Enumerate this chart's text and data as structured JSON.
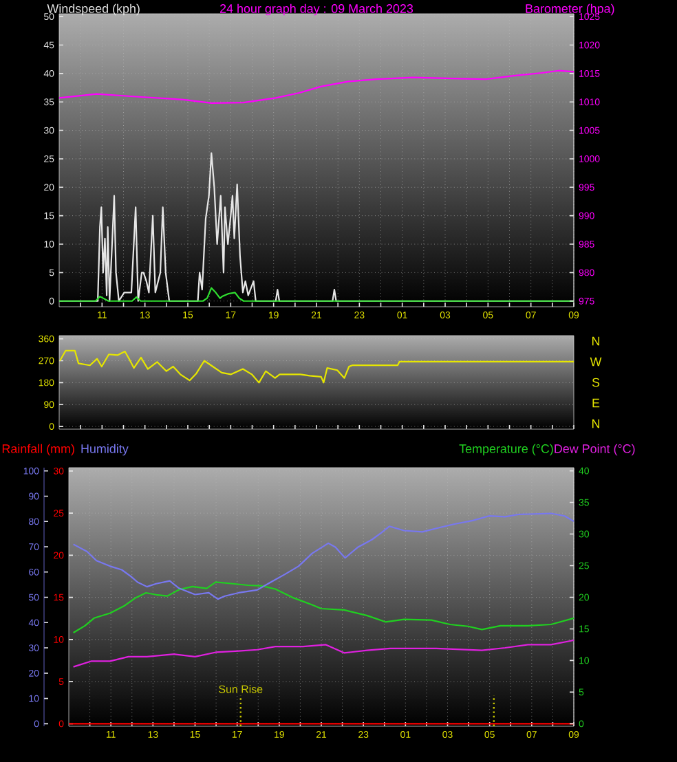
{
  "chart_data": [
    {
      "type": "line",
      "title": "24 hour graph day : 09 March 2023",
      "xlim": [
        "2023-03-08T09:00",
        "2023-03-09T09:00"
      ],
      "xticks": [
        {
          "value": "2023-03-08T10:00",
          "label": null
        },
        {
          "value": "2023-03-08T11:00",
          "label": "11"
        },
        {
          "value": "2023-03-08T12:00",
          "label": null
        },
        {
          "value": "2023-03-08T13:00",
          "label": "13"
        },
        {
          "value": "2023-03-08T14:00",
          "label": null
        },
        {
          "value": "2023-03-08T15:00",
          "label": "15"
        },
        {
          "value": "2023-03-08T16:00",
          "label": null
        },
        {
          "value": "2023-03-08T17:00",
          "label": "17"
        },
        {
          "value": "2023-03-08T18:00",
          "label": null
        },
        {
          "value": "2023-03-08T19:00",
          "label": "19"
        },
        {
          "value": "2023-03-08T20:00",
          "label": null
        },
        {
          "value": "2023-03-08T21:00",
          "label": "21"
        },
        {
          "value": "2023-03-08T22:00",
          "label": null
        },
        {
          "value": "2023-03-08T23:00",
          "label": "23"
        },
        {
          "value": "2023-03-09T00:00",
          "label": null
        },
        {
          "value": "2023-03-09T01:00",
          "label": "01"
        },
        {
          "value": "2023-03-09T02:00",
          "label": null
        },
        {
          "value": "2023-03-09T03:00",
          "label": "03"
        },
        {
          "value": "2023-03-09T04:00",
          "label": null
        },
        {
          "value": "2023-03-09T05:00",
          "label": "05"
        },
        {
          "value": "2023-03-09T06:00",
          "label": null
        },
        {
          "value": "2023-03-09T07:00",
          "label": "07"
        },
        {
          "value": "2023-03-09T08:00",
          "label": null
        },
        {
          "value": "2023-03-09T09:00",
          "label": "09"
        }
      ],
      "ylim": [
        -1,
        50.5
      ],
      "yticks": [
        0,
        5,
        10,
        15,
        20,
        25,
        30,
        35,
        40,
        45,
        50
      ],
      "y2lim": [
        974,
        1025.5
      ],
      "y2ticks": [
        975,
        980,
        985,
        990,
        995,
        1000,
        1005,
        1010,
        1015,
        1020,
        1025
      ],
      "grid": true,
      "series": [
        {
          "name": "Windspeed (kph)",
          "color": "#e6e6e6",
          "x": [
            "2023-03-08T09:00",
            "2023-03-08T10:48",
            "2023-03-08T10:54",
            "2023-03-08T10:58",
            "2023-03-08T11:03",
            "2023-03-08T11:08",
            "2023-03-08T11:13",
            "2023-03-08T11:16",
            "2023-03-08T11:21",
            "2023-03-08T11:34",
            "2023-03-08T11:39",
            "2023-03-08T11:47",
            "2023-03-08T12:02",
            "2023-03-08T12:22",
            "2023-03-08T12:34",
            "2023-03-08T12:41",
            "2023-03-08T12:51",
            "2023-03-08T12:56",
            "2023-03-08T13:04",
            "2023-03-08T13:11",
            "2023-03-08T13:22",
            "2023-03-08T13:29",
            "2023-03-08T13:43",
            "2023-03-08T13:50",
            "2023-03-08T13:58",
            "2023-03-08T14:08",
            "2023-03-08T15:28",
            "2023-03-08T15:33",
            "2023-03-08T15:40",
            "2023-03-08T15:50",
            "2023-03-08T15:59",
            "2023-03-08T16:06",
            "2023-03-08T16:14",
            "2023-03-08T16:22",
            "2023-03-08T16:32",
            "2023-03-08T16:40",
            "2023-03-08T16:44",
            "2023-03-08T16:52",
            "2023-03-08T17:00",
            "2023-03-08T17:05",
            "2023-03-08T17:10",
            "2023-03-08T17:18",
            "2023-03-08T17:26",
            "2023-03-08T17:34",
            "2023-03-08T17:41",
            "2023-03-08T17:49",
            "2023-03-08T18:04",
            "2023-03-08T18:10",
            "2023-03-08T19:06",
            "2023-03-08T19:11",
            "2023-03-08T19:16",
            "2023-03-08T21:45",
            "2023-03-08T21:50",
            "2023-03-08T21:55",
            "2023-03-09T09:00"
          ],
          "values": [
            0,
            0,
            13,
            16.5,
            5,
            11,
            1,
            13,
            0,
            18.5,
            5,
            0,
            1.5,
            1.5,
            16.5,
            0,
            5,
            5,
            3.5,
            1.5,
            15,
            1.5,
            5,
            16.5,
            5,
            0,
            0,
            5,
            2,
            14.5,
            18.5,
            26,
            20,
            10,
            18.5,
            5,
            16.5,
            10,
            15,
            18.5,
            11,
            20.5,
            8,
            1.5,
            3.5,
            1,
            3.5,
            0,
            0,
            2,
            0,
            0,
            2,
            0,
            0
          ]
        },
        {
          "color": "#30e030",
          "x": [
            "2023-03-08T09:00",
            "2023-03-08T10:42",
            "2023-03-08T10:54",
            "2023-03-08T11:18",
            "2023-03-08T12:24",
            "2023-03-08T12:36",
            "2023-03-08T12:48",
            "2023-03-08T15:42",
            "2023-03-08T15:54",
            "2023-03-08T16:06",
            "2023-03-08T16:18",
            "2023-03-08T16:30",
            "2023-03-08T16:36",
            "2023-03-08T16:54",
            "2023-03-08T17:12",
            "2023-03-08T17:24",
            "2023-03-08T17:36",
            "2023-03-09T09:00"
          ],
          "values": [
            0,
            0,
            0.8,
            0,
            0,
            0.7,
            0,
            0,
            0.5,
            2.3,
            1.5,
            0.5,
            0.8,
            1.3,
            1.5,
            0.5,
            0,
            0
          ]
        },
        {
          "name": "Barometer (hpa)",
          "color": "#ff00ff",
          "axis": "y2",
          "x": [
            "2023-03-08T09:00",
            "2023-03-08T10:45",
            "2023-03-08T12:42",
            "2023-03-08T14:48",
            "2023-03-08T16:06",
            "2023-03-08T17:36",
            "2023-03-08T19:06",
            "2023-03-08T20:12",
            "2023-03-08T21:12",
            "2023-03-08T22:30",
            "2023-03-08T23:48",
            "2023-03-09T01:30",
            "2023-03-09T03:42",
            "2023-03-09T04:54",
            "2023-03-09T06:12",
            "2023-03-09T07:30",
            "2023-03-09T08:18",
            "2023-03-09T09:00"
          ],
          "values": [
            1010.7,
            1011.4,
            1010.9,
            1010.4,
            1009.8,
            1009.9,
            1010.7,
            1011.6,
            1012.7,
            1013.6,
            1014.0,
            1014.3,
            1014.1,
            1014.0,
            1014.6,
            1015.1,
            1015.5,
            1015.3
          ]
        }
      ]
    },
    {
      "type": "line",
      "xlim": [
        "2023-03-08T09:00",
        "2023-03-09T09:00"
      ],
      "ylim": [
        -11,
        373
      ],
      "yticks": [
        0,
        90,
        180,
        270,
        360
      ],
      "xticks": [
        {
          "value": "2023-03-08T10:00",
          "label": null
        },
        {
          "value": "2023-03-08T11:00",
          "label": null
        },
        {
          "value": "2023-03-08T12:00",
          "label": null
        },
        {
          "value": "2023-03-08T13:00",
          "label": null
        },
        {
          "value": "2023-03-08T14:00",
          "label": null
        },
        {
          "value": "2023-03-08T15:00",
          "label": null
        },
        {
          "value": "2023-03-08T16:00",
          "label": null
        },
        {
          "value": "2023-03-08T17:00",
          "label": null
        },
        {
          "value": "2023-03-08T18:00",
          "label": null
        },
        {
          "value": "2023-03-08T19:00",
          "label": null
        },
        {
          "value": "2023-03-08T20:00",
          "label": null
        },
        {
          "value": "2023-03-08T21:00",
          "label": null
        },
        {
          "value": "2023-03-08T22:00",
          "label": null
        },
        {
          "value": "2023-03-08T23:00",
          "label": null
        },
        {
          "value": "2023-03-09T00:00",
          "label": null
        },
        {
          "value": "2023-03-09T01:00",
          "label": null
        },
        {
          "value": "2023-03-09T02:00",
          "label": null
        },
        {
          "value": "2023-03-09T03:00",
          "label": null
        },
        {
          "value": "2023-03-09T04:00",
          "label": null
        },
        {
          "value": "2023-03-09T05:00",
          "label": null
        },
        {
          "value": "2023-03-09T06:00",
          "label": null
        },
        {
          "value": "2023-03-09T07:00",
          "label": null
        },
        {
          "value": "2023-03-09T08:00",
          "label": null
        },
        {
          "value": "2023-03-09T09:00",
          "label": null
        }
      ],
      "annotations": [
        "N",
        "W",
        "S",
        "E",
        "N"
      ],
      "grid": "y",
      "tick_labels": "y",
      "series": [
        {
          "color": "#e6e600",
          "x": [
            "2023-03-08T09:02",
            "2023-03-08T09:18",
            "2023-03-08T09:44",
            "2023-03-08T09:54",
            "2023-03-08T10:26",
            "2023-03-08T10:46",
            "2023-03-08T10:59",
            "2023-03-08T11:19",
            "2023-03-08T11:44",
            "2023-03-08T12:04",
            "2023-03-08T12:17",
            "2023-03-08T12:29",
            "2023-03-08T12:49",
            "2023-03-08T13:08",
            "2023-03-08T13:34",
            "2023-03-08T14:00",
            "2023-03-08T14:19",
            "2023-03-08T14:39",
            "2023-03-08T15:05",
            "2023-03-08T15:24",
            "2023-03-08T15:46",
            "2023-03-08T16:10",
            "2023-03-08T16:35",
            "2023-03-08T17:01",
            "2023-03-08T17:34",
            "2023-03-08T17:59",
            "2023-03-08T18:19",
            "2023-03-08T18:38",
            "2023-03-08T19:04",
            "2023-03-08T19:17",
            "2023-03-08T20:15",
            "2023-03-08T20:41",
            "2023-03-08T21:13",
            "2023-03-08T21:20",
            "2023-03-08T21:30",
            "2023-03-08T21:58",
            "2023-03-08T22:18",
            "2023-03-08T22:31",
            "2023-03-08T22:40",
            "2023-03-09T00:47",
            "2023-03-09T00:52",
            "2023-03-09T09:00"
          ],
          "values": [
            270,
            311,
            311,
            259,
            251,
            278,
            246,
            296,
            293,
            308,
            274,
            240,
            283,
            236,
            265,
            227,
            246,
            214,
            189,
            218,
            270,
            246,
            221,
            214,
            236,
            214,
            180,
            227,
            199,
            214,
            214,
            208,
            204,
            180,
            240,
            231,
            199,
            246,
            251,
            251,
            266,
            266
          ]
        }
      ]
    },
    {
      "type": "line",
      "xlim": [
        "2023-03-08T09:00",
        "2023-03-09T09:00"
      ],
      "xticks": [
        {
          "value": "2023-03-08T10:00",
          "label": null
        },
        {
          "value": "2023-03-08T11:00",
          "label": "11"
        },
        {
          "value": "2023-03-08T12:00",
          "label": null
        },
        {
          "value": "2023-03-08T13:00",
          "label": "13"
        },
        {
          "value": "2023-03-08T14:00",
          "label": null
        },
        {
          "value": "2023-03-08T15:00",
          "label": "15"
        },
        {
          "value": "2023-03-08T16:00",
          "label": null
        },
        {
          "value": "2023-03-08T17:00",
          "label": "17"
        },
        {
          "value": "2023-03-08T18:00",
          "label": null
        },
        {
          "value": "2023-03-08T19:00",
          "label": "19"
        },
        {
          "value": "2023-03-08T20:00",
          "label": null
        },
        {
          "value": "2023-03-08T21:00",
          "label": "21"
        },
        {
          "value": "2023-03-08T22:00",
          "label": null
        },
        {
          "value": "2023-03-08T23:00",
          "label": "23"
        },
        {
          "value": "2023-03-09T00:00",
          "label": null
        },
        {
          "value": "2023-03-09T01:00",
          "label": "01"
        },
        {
          "value": "2023-03-09T02:00",
          "label": null
        },
        {
          "value": "2023-03-09T03:00",
          "label": "03"
        },
        {
          "value": "2023-03-09T04:00",
          "label": null
        },
        {
          "value": "2023-03-09T05:00",
          "label": "05"
        },
        {
          "value": "2023-03-09T06:00",
          "label": null
        },
        {
          "value": "2023-03-09T07:00",
          "label": "07"
        },
        {
          "value": "2023-03-09T08:00",
          "label": null
        },
        {
          "value": "2023-03-09T09:00",
          "label": "09"
        }
      ],
      "ylim": [
        -0.3,
        30.4
      ],
      "yticks": [
        0,
        5,
        10,
        15,
        20,
        25,
        30
      ],
      "y2lim": [
        -0.4,
        40.5
      ],
      "y2ticks": [
        0,
        5,
        10,
        15,
        20,
        25,
        30,
        35,
        40
      ],
      "y3lim": [
        -1,
        101.3
      ],
      "y3ticks": [
        0,
        10,
        20,
        30,
        40,
        50,
        60,
        70,
        80,
        90,
        100
      ],
      "grid": true,
      "ref_lines": [
        {
          "axis": "x",
          "value": "2023-03-08T17:10",
          "label": "Sun Rise",
          "color": "#c8c800",
          "line_style": "dotted"
        },
        {
          "axis": "x",
          "value": "2023-03-09T05:12",
          "color": "#c8c800",
          "line_style": "dotted"
        }
      ],
      "series": [
        {
          "name": "Rainfall (mm)",
          "color": "#ff0000",
          "x": [
            "2023-03-08T09:00",
            "2023-03-09T09:00"
          ],
          "values": [
            0,
            0
          ]
        },
        {
          "name": "Humidity",
          "color": "#7878f0",
          "axis": "y3",
          "x": [
            "2023-03-08T09:13",
            "2023-03-08T09:52",
            "2023-03-08T10:19",
            "2023-03-08T10:58",
            "2023-03-08T11:31",
            "2023-03-08T11:57",
            "2023-03-08T12:16",
            "2023-03-08T12:43",
            "2023-03-08T13:09",
            "2023-03-08T13:48",
            "2023-03-08T14:14",
            "2023-03-08T15:00",
            "2023-03-08T15:39",
            "2023-03-08T16:05",
            "2023-03-08T16:25",
            "2023-03-08T17:04",
            "2023-03-08T17:57",
            "2023-03-08T18:36",
            "2023-03-08T19:16",
            "2023-03-08T19:55",
            "2023-03-08T20:34",
            "2023-03-08T21:20",
            "2023-03-08T21:40",
            "2023-03-08T22:08",
            "2023-03-08T22:45",
            "2023-03-08T23:24",
            "2023-03-08T23:50",
            "2023-03-09T00:14",
            "2023-03-09T00:56",
            "2023-03-09T01:48",
            "2023-03-09T02:40",
            "2023-03-09T03:20",
            "2023-03-09T04:12",
            "2023-03-09T04:58",
            "2023-03-09T05:44",
            "2023-03-09T06:23",
            "2023-03-09T07:55",
            "2023-03-09T08:34",
            "2023-03-09T09:00"
          ],
          "values": [
            71.0,
            68.1,
            64.5,
            62.3,
            60.9,
            58.3,
            56.0,
            54.2,
            55.4,
            56.5,
            53.6,
            51.1,
            51.8,
            49.3,
            50.5,
            51.8,
            52.9,
            56.0,
            59.1,
            62.3,
            67.4,
            71.4,
            69.9,
            65.6,
            69.9,
            72.8,
            75.4,
            78.1,
            76.4,
            75.9,
            77.7,
            79.0,
            80.4,
            82.2,
            81.9,
            82.8,
            83.2,
            82.2,
            80.1
          ]
        },
        {
          "name": "Temperature (°C)",
          "color": "#20d020",
          "axis": "y2",
          "x": [
            "2023-03-08T09:13",
            "2023-03-08T09:46",
            "2023-03-08T10:12",
            "2023-03-08T10:58",
            "2023-03-08T11:37",
            "2023-03-08T12:10",
            "2023-03-08T12:40",
            "2023-03-08T13:09",
            "2023-03-08T13:41",
            "2023-03-08T14:14",
            "2023-03-08T14:53",
            "2023-03-08T15:33",
            "2023-03-08T15:59",
            "2023-03-08T16:38",
            "2023-03-08T17:31",
            "2023-03-08T18:10",
            "2023-03-08T18:49",
            "2023-03-08T19:41",
            "2023-03-08T20:34",
            "2023-03-08T21:00",
            "2023-03-08T22:05",
            "2023-03-08T23:11",
            "2023-03-09T00:03",
            "2023-03-09T00:56",
            "2023-03-09T02:14",
            "2023-03-09T03:07",
            "2023-03-09T03:59",
            "2023-03-09T04:38",
            "2023-03-09T05:31",
            "2023-03-09T06:49",
            "2023-03-09T07:55",
            "2023-03-09T09:00"
          ],
          "values": [
            14.4,
            15.5,
            16.7,
            17.5,
            18.6,
            19.9,
            20.7,
            20.4,
            20.2,
            21.2,
            21.7,
            21.4,
            22.4,
            22.2,
            21.9,
            21.8,
            21.3,
            19.9,
            18.8,
            18.2,
            18.0,
            17.1,
            16.1,
            16.5,
            16.4,
            15.7,
            15.4,
            14.9,
            15.5,
            15.5,
            15.7,
            16.7
          ]
        },
        {
          "name": "Dew Point (°C)",
          "color": "#e020e0",
          "axis": "y2",
          "x": [
            "2023-03-08T09:13",
            "2023-03-08T10:05",
            "2023-03-08T10:58",
            "2023-03-08T11:50",
            "2023-03-08T12:43",
            "2023-03-08T14:01",
            "2023-03-08T15:00",
            "2023-03-08T15:59",
            "2023-03-08T17:04",
            "2023-03-08T17:57",
            "2023-03-08T18:49",
            "2023-03-08T20:08",
            "2023-03-08T21:13",
            "2023-03-08T22:05",
            "2023-03-08T23:11",
            "2023-03-09T00:16",
            "2023-03-09T02:28",
            "2023-03-09T04:38",
            "2023-03-09T05:44",
            "2023-03-09T06:49",
            "2023-03-09T07:55",
            "2023-03-09T09:00"
          ],
          "values": [
            9.0,
            9.9,
            9.9,
            10.6,
            10.6,
            11.0,
            10.6,
            11.3,
            11.5,
            11.7,
            12.2,
            12.2,
            12.5,
            11.2,
            11.6,
            11.9,
            11.9,
            11.6,
            12.0,
            12.5,
            12.5,
            13.2
          ]
        }
      ]
    }
  ]
}
